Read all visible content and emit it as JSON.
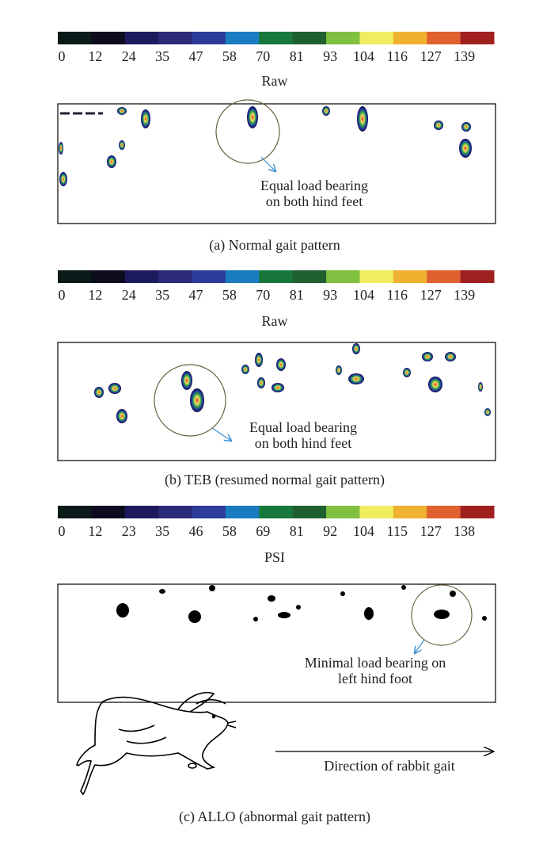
{
  "panels": [
    {
      "colorbar_labels": [
        "0",
        "12",
        "24",
        "35",
        "47",
        "58",
        "70",
        "81",
        "93",
        "104",
        "116",
        "127",
        "139"
      ],
      "scale_label": "Raw",
      "annotation": [
        "Equal load bearing",
        "on both hind feet"
      ],
      "caption": "(a)  Normal gait pattern"
    },
    {
      "colorbar_labels": [
        "0",
        "12",
        "24",
        "35",
        "47",
        "58",
        "70",
        "81",
        "93",
        "104",
        "116",
        "127",
        "139"
      ],
      "scale_label": "Raw",
      "annotation": [
        "Equal load bearing",
        "on both hind feet"
      ],
      "caption": "(b)  TEB (resumed normal gait pattern)"
    },
    {
      "colorbar_labels": [
        "0",
        "12",
        "23",
        "35",
        "46",
        "58",
        "69",
        "81",
        "92",
        "104",
        "115",
        "127",
        "138"
      ],
      "scale_label": "PSI",
      "annotation": [
        "Minimal load bearing on",
        "left hind foot"
      ],
      "caption": "(c)  ALLO (abnormal gait pattern)"
    }
  ],
  "direction_label": "Direction of rabbit gait"
}
